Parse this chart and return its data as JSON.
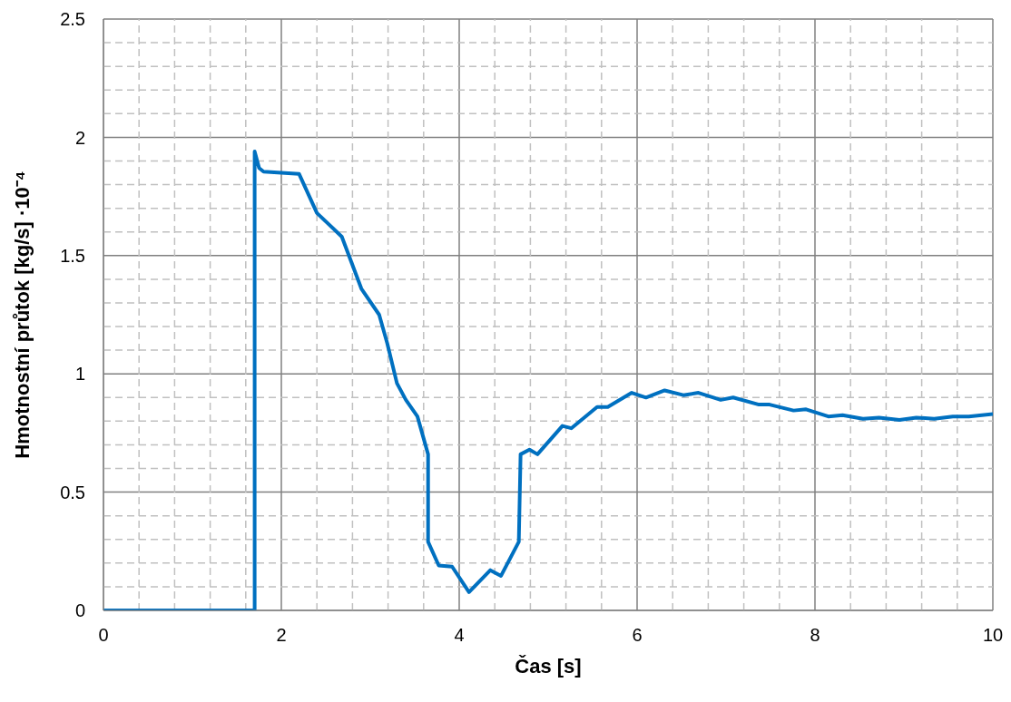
{
  "chart_data": {
    "type": "line",
    "xlabel": "Čas [s]",
    "ylabel": "Hmotnostní průtok [kg/s] ·10⁻⁴",
    "x": [
      0,
      1.7,
      1.7,
      1.75,
      1.8,
      2.0,
      2.2,
      2.4,
      2.68,
      2.9,
      3.1,
      3.19,
      3.3,
      3.4,
      3.53,
      3.65,
      3.65,
      3.77,
      3.92,
      4.11,
      4.35,
      4.47,
      4.67,
      4.69,
      4.79,
      4.88,
      5.16,
      5.26,
      5.55,
      5.67,
      5.94,
      6.1,
      6.31,
      6.52,
      6.69,
      6.94,
      7.08,
      7.37,
      7.49,
      7.76,
      7.9,
      8.15,
      8.31,
      8.54,
      8.72,
      8.95,
      9.14,
      9.34,
      9.55,
      9.73,
      10
    ],
    "series": [
      {
        "color": "#0070c0",
        "values": [
          0,
          0,
          1.94,
          1.87,
          1.855,
          1.85,
          1.845,
          1.68,
          1.58,
          1.36,
          1.25,
          1.13,
          0.96,
          0.89,
          0.82,
          0.66,
          0.29,
          0.19,
          0.185,
          0.077,
          0.17,
          0.146,
          0.29,
          0.66,
          0.68,
          0.66,
          0.78,
          0.77,
          0.86,
          0.86,
          0.92,
          0.9,
          0.93,
          0.91,
          0.92,
          0.89,
          0.9,
          0.87,
          0.87,
          0.845,
          0.85,
          0.82,
          0.825,
          0.81,
          0.815,
          0.805,
          0.815,
          0.81,
          0.82,
          0.82,
          0.83
        ]
      }
    ],
    "xlim": [
      0,
      10
    ],
    "xticks": [
      0,
      2,
      4,
      6,
      8,
      10
    ],
    "ylim": [
      0,
      2.5
    ],
    "yticks": [
      0,
      0.5,
      1,
      1.5,
      2,
      2.5
    ],
    "grid": true,
    "marker": "none",
    "line_style": "solid"
  }
}
